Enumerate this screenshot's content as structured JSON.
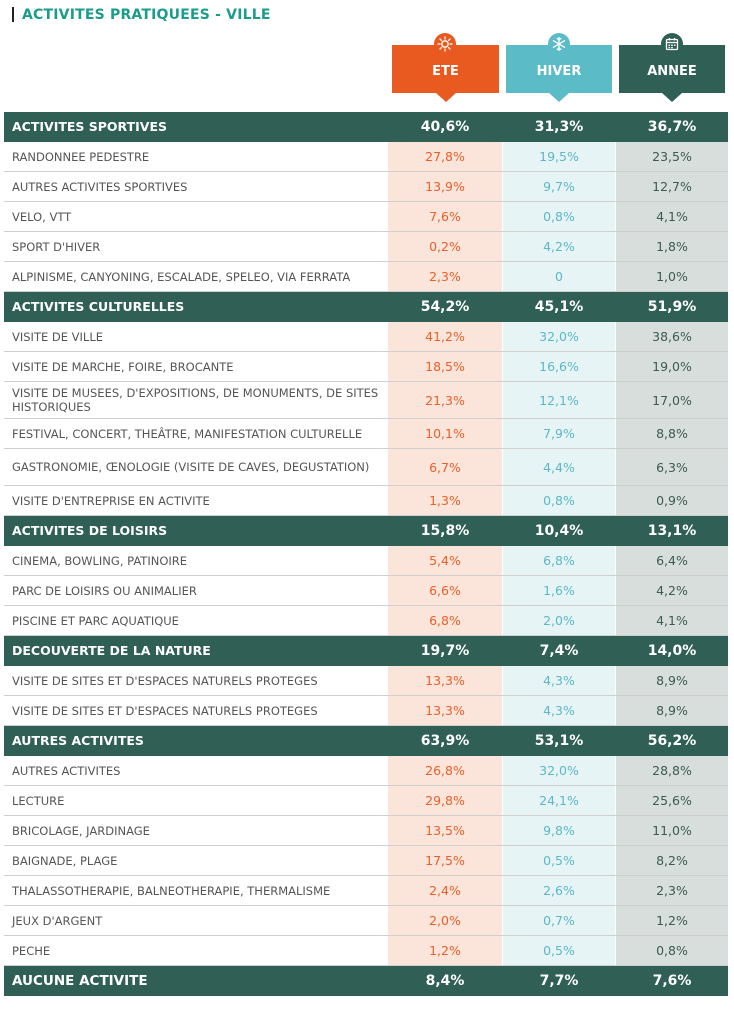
{
  "title": "ACTIVITES PRATIQUEES - VILLE",
  "headers": {
    "ete": "ETE",
    "hiver": "HIVER",
    "annee": "ANNEE"
  },
  "colors": {
    "ete": "#e85a1f",
    "hiver": "#5bbcc8",
    "annee": "#2f5f55",
    "title": "#1a9c8c"
  },
  "icons": {
    "ete": "sun-icon",
    "hiver": "snowflake-icon",
    "annee": "calendar-icon"
  },
  "rows": [
    {
      "type": "cat",
      "label": "ACTIVITES SPORTIVES",
      "ete": "40,6%",
      "hiver": "31,3%",
      "annee": "36,7%"
    },
    {
      "type": "sub",
      "label": "RANDONNEE PEDESTRE",
      "ete": "27,8%",
      "hiver": "19,5%",
      "annee": "23,5%"
    },
    {
      "type": "sub",
      "label": "AUTRES ACTIVITES SPORTIVES",
      "ete": "13,9%",
      "hiver": "9,7%",
      "annee": "12,7%"
    },
    {
      "type": "sub",
      "label": "VELO, VTT",
      "ete": "7,6%",
      "hiver": "0,8%",
      "annee": "4,1%"
    },
    {
      "type": "sub",
      "label": "SPORT D'HIVER",
      "ete": "0,2%",
      "hiver": "4,2%",
      "annee": "1,8%"
    },
    {
      "type": "sub",
      "label": "ALPINISME, CANYONING, ESCALADE, SPELEO, VIA FERRATA",
      "ete": "2,3%",
      "hiver": "0",
      "annee": "1,0%"
    },
    {
      "type": "cat",
      "label": "ACTIVITES CULTURELLES",
      "ete": "54,2%",
      "hiver": "45,1%",
      "annee": "51,9%"
    },
    {
      "type": "sub",
      "label": "VISITE DE VILLE",
      "ete": "41,2%",
      "hiver": "32,0%",
      "annee": "38,6%"
    },
    {
      "type": "sub",
      "label": "VISITE DE MARCHE, FOIRE, BROCANTE",
      "ete": "18,5%",
      "hiver": "16,6%",
      "annee": "19,0%"
    },
    {
      "type": "sub",
      "tall": true,
      "label": "VISITE DE MUSEES, D'EXPOSITIONS, DE MONUMENTS, DE SITES HISTORIQUES",
      "ete": "21,3%",
      "hiver": "12,1%",
      "annee": "17,0%"
    },
    {
      "type": "sub",
      "label": "FESTIVAL, CONCERT, THEÂTRE, MANIFESTATION CULTURELLE",
      "ete": "10,1%",
      "hiver": "7,9%",
      "annee": "8,8%"
    },
    {
      "type": "sub",
      "tall": true,
      "label": "GASTRONOMIE, ŒNOLOGIE (VISITE DE CAVES, DEGUSTATION)",
      "ete": "6,7%",
      "hiver": "4,4%",
      "annee": "6,3%"
    },
    {
      "type": "sub",
      "label": "VISITE D'ENTREPRISE EN ACTIVITE",
      "ete": "1,3%",
      "hiver": "0,8%",
      "annee": "0,9%"
    },
    {
      "type": "cat",
      "label": "ACTIVITES DE LOISIRS",
      "ete": "15,8%",
      "hiver": "10,4%",
      "annee": "13,1%"
    },
    {
      "type": "sub",
      "label": "CINEMA, BOWLING, PATINOIRE",
      "ete": "5,4%",
      "hiver": "6,8%",
      "annee": "6,4%"
    },
    {
      "type": "sub",
      "label": "PARC DE LOISIRS OU ANIMALIER",
      "ete": "6,6%",
      "hiver": "1,6%",
      "annee": "4,2%"
    },
    {
      "type": "sub",
      "label": "PISCINE ET PARC AQUATIQUE",
      "ete": "6,8%",
      "hiver": "2,0%",
      "annee": "4,1%"
    },
    {
      "type": "cat",
      "label": "DECOUVERTE DE LA NATURE",
      "ete": "19,7%",
      "hiver": "7,4%",
      "annee": "14,0%"
    },
    {
      "type": "sub",
      "label": "VISITE DE SITES ET D'ESPACES NATURELS PROTEGES",
      "ete": "13,3%",
      "hiver": "4,3%",
      "annee": "8,9%"
    },
    {
      "type": "sub",
      "label": "VISITE DE SITES ET D'ESPACES NATURELS PROTEGES",
      "ete": "13,3%",
      "hiver": "4,3%",
      "annee": "8,9%"
    },
    {
      "type": "cat",
      "label": "AUTRES ACTIVITES",
      "ete": "63,9%",
      "hiver": "53,1%",
      "annee": "56,2%"
    },
    {
      "type": "sub",
      "label": "AUTRES ACTIVITES",
      "ete": "26,8%",
      "hiver": "32,0%",
      "annee": "28,8%"
    },
    {
      "type": "sub",
      "label": "LECTURE",
      "ete": "29,8%",
      "hiver": "24,1%",
      "annee": "25,6%"
    },
    {
      "type": "sub",
      "label": "BRICOLAGE, JARDINAGE",
      "ete": "13,5%",
      "hiver": "9,8%",
      "annee": "11,0%"
    },
    {
      "type": "sub",
      "label": "BAIGNADE, PLAGE",
      "ete": "17,5%",
      "hiver": "0,5%",
      "annee": "8,2%"
    },
    {
      "type": "sub",
      "label": "THALASSOTHERAPIE, BALNEOTHERAPIE, THERMALISME",
      "ete": "2,4%",
      "hiver": "2,6%",
      "annee": "2,3%"
    },
    {
      "type": "sub",
      "label": "JEUX D'ARGENT",
      "ete": "2,0%",
      "hiver": "0,7%",
      "annee": "1,2%"
    },
    {
      "type": "sub",
      "label": "PECHE",
      "ete": "1,2%",
      "hiver": "0,5%",
      "annee": "0,8%"
    },
    {
      "type": "cat",
      "big": true,
      "label": "AUCUNE ACTIVITE",
      "ete": "8,4%",
      "hiver": "7,7%",
      "annee": "7,6%"
    }
  ]
}
